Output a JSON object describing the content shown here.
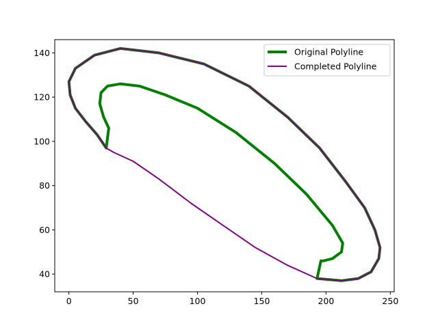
{
  "chart_data": {
    "type": "line",
    "title": "",
    "xlabel": "",
    "ylabel": "",
    "xlim": [
      -11,
      253
    ],
    "ylim": [
      32,
      146
    ],
    "xticks": [
      0,
      50,
      100,
      150,
      200,
      250
    ],
    "yticks": [
      40,
      60,
      80,
      100,
      120,
      140
    ],
    "grid": false,
    "legend_position": "top-right",
    "series": [
      {
        "name": "Original Polyline",
        "color": "#008000",
        "linewidth": 4,
        "points": [
          [
            29,
            97
          ],
          [
            31,
            106
          ],
          [
            27,
            111
          ],
          [
            24,
            117
          ],
          [
            25,
            122
          ],
          [
            30,
            125
          ],
          [
            40,
            126
          ],
          [
            55,
            125
          ],
          [
            75,
            121
          ],
          [
            100,
            115
          ],
          [
            130,
            104
          ],
          [
            160,
            90
          ],
          [
            185,
            76
          ],
          [
            205,
            62
          ],
          [
            213,
            54
          ],
          [
            212,
            50
          ],
          [
            205,
            47
          ],
          [
            198,
            46
          ],
          [
            196,
            46
          ],
          [
            193,
            38
          ],
          [
            212,
            37
          ],
          [
            225,
            38
          ],
          [
            235,
            41
          ],
          [
            241,
            47
          ],
          [
            242,
            52
          ],
          [
            238,
            60
          ],
          [
            230,
            70
          ],
          [
            215,
            82
          ],
          [
            195,
            97
          ],
          [
            170,
            111
          ],
          [
            140,
            125
          ],
          [
            105,
            135
          ],
          [
            70,
            140
          ],
          [
            40,
            142
          ],
          [
            20,
            139
          ],
          [
            5,
            133
          ],
          [
            0,
            127
          ],
          [
            1,
            121
          ],
          [
            5,
            115
          ],
          [
            13,
            109
          ],
          [
            22,
            103
          ],
          [
            29,
            97
          ]
        ]
      },
      {
        "name": "Completed Polyline",
        "color": "#800080",
        "linewidth": 2,
        "points": [
          [
            29,
            97
          ],
          [
            22,
            103
          ],
          [
            13,
            109
          ],
          [
            5,
            115
          ],
          [
            1,
            121
          ],
          [
            0,
            127
          ],
          [
            5,
            133
          ],
          [
            20,
            139
          ],
          [
            40,
            142
          ],
          [
            70,
            140
          ],
          [
            105,
            135
          ],
          [
            140,
            125
          ],
          [
            170,
            111
          ],
          [
            195,
            97
          ],
          [
            215,
            82
          ],
          [
            230,
            70
          ],
          [
            238,
            60
          ],
          [
            242,
            52
          ],
          [
            241,
            47
          ],
          [
            235,
            41
          ],
          [
            225,
            38
          ],
          [
            212,
            37
          ],
          [
            193,
            38
          ],
          [
            170,
            44
          ],
          [
            145,
            52
          ],
          [
            120,
            62
          ],
          [
            95,
            72
          ],
          [
            70,
            83
          ],
          [
            50,
            91
          ],
          [
            35,
            95
          ],
          [
            29,
            97
          ]
        ]
      }
    ]
  }
}
